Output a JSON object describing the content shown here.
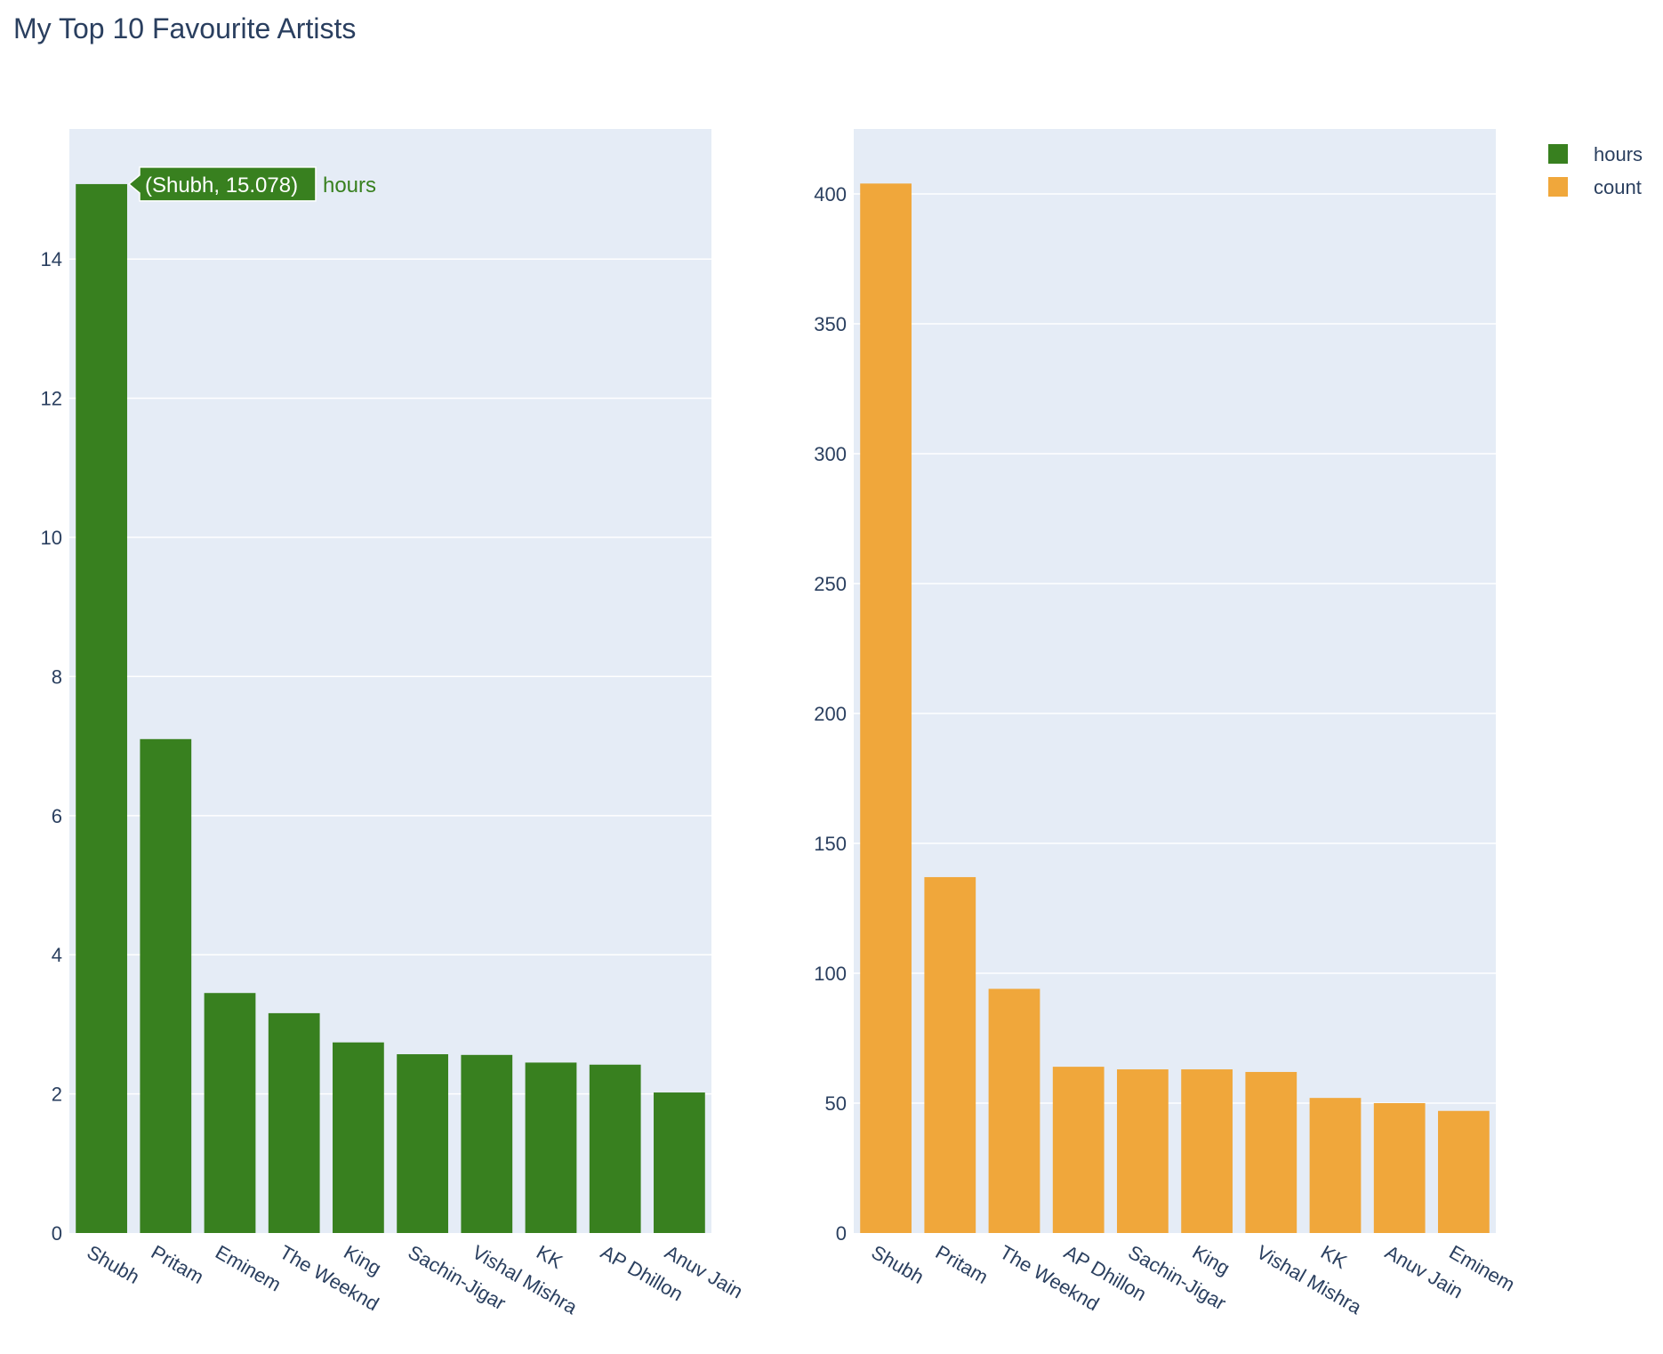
{
  "title": "My Top 10 Favourite Artists",
  "colors": {
    "hours": "#38801f",
    "count": "#f0a73b",
    "plot_bg": "#e5ecf6",
    "grid": "#ffffff",
    "text": "#2a3f5f"
  },
  "legend": [
    {
      "name": "hours",
      "color": "#38801f"
    },
    {
      "name": "count",
      "color": "#f0a73b"
    }
  ],
  "tooltip": {
    "text": "(Shubh, 15.078)",
    "series": "hours"
  },
  "chart_data": [
    {
      "type": "bar",
      "series_name": "hours",
      "categories": [
        "Shubh",
        "Pritam",
        "Eminem",
        "The Weeknd",
        "King",
        "Sachin-Jigar",
        "Vishal Mishra",
        "KK",
        "AP Dhillon",
        "Anuv Jain"
      ],
      "values": [
        15.078,
        7.1,
        3.45,
        3.16,
        2.74,
        2.57,
        2.56,
        2.45,
        2.42,
        2.02
      ],
      "ylim": [
        0,
        15.87
      ],
      "yticks": [
        0,
        2,
        4,
        6,
        8,
        10,
        12,
        14
      ],
      "grid": true
    },
    {
      "type": "bar",
      "series_name": "count",
      "categories": [
        "Shubh",
        "Pritam",
        "The Weeknd",
        "AP Dhillon",
        "Sachin-Jigar",
        "King",
        "Vishal Mishra",
        "KK",
        "Anuv Jain",
        "Eminem"
      ],
      "values": [
        404,
        137,
        94,
        64,
        63,
        63,
        62,
        52,
        50,
        47
      ],
      "ylim": [
        0,
        425
      ],
      "yticks": [
        0,
        50,
        100,
        150,
        200,
        250,
        300,
        350,
        400
      ],
      "grid": true
    }
  ]
}
